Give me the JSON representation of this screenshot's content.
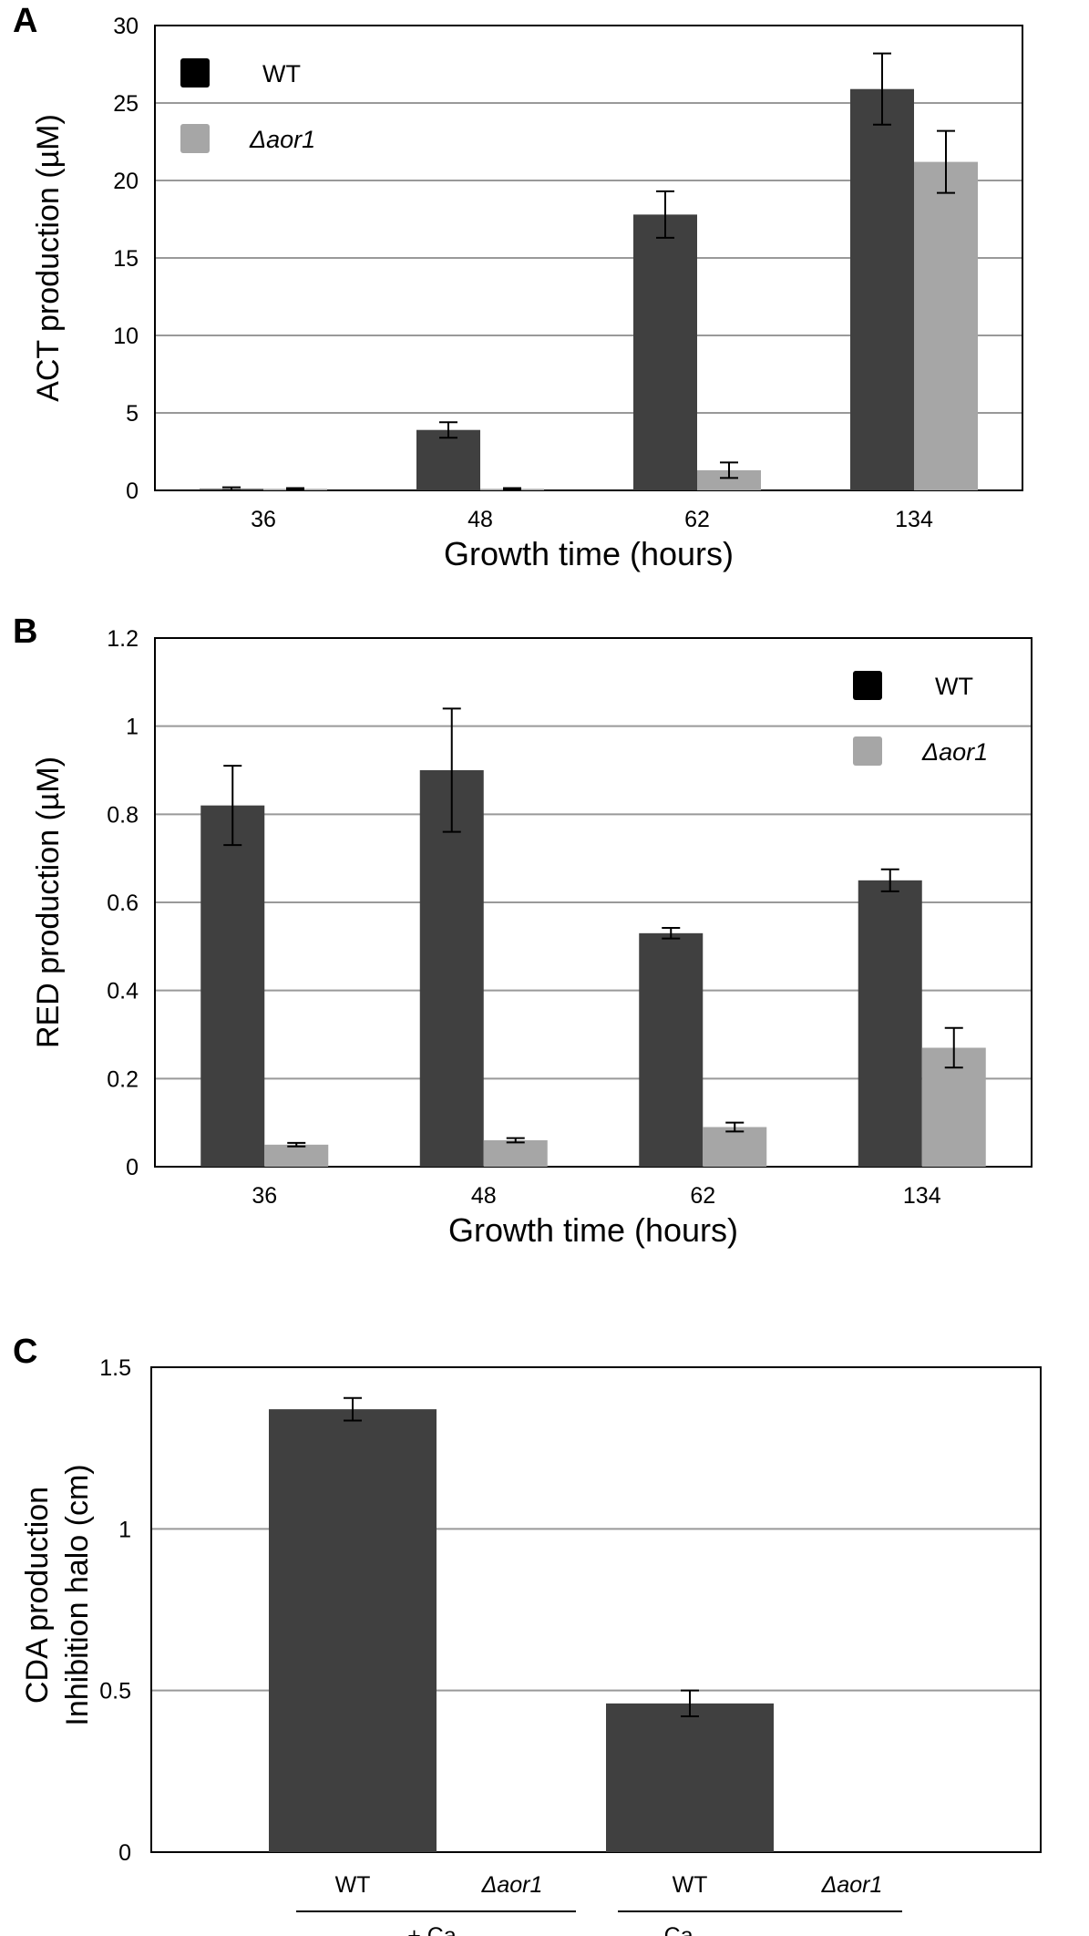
{
  "panels": [
    "A",
    "B",
    "C"
  ],
  "colors": {
    "wt": "#404040",
    "mutant": "#a6a6a6",
    "grid": "#999999",
    "frame": "#000000"
  },
  "chart_data": [
    {
      "type": "bar",
      "id": "A",
      "ylabel": "ACT production  (µM)",
      "xlabel": "Growth time (hours)",
      "categories": [
        "36",
        "48",
        "62",
        "134"
      ],
      "ylim": [
        0,
        30
      ],
      "yticks": [
        0,
        5,
        10,
        15,
        20,
        25,
        30
      ],
      "yticklabels": [
        "0",
        "5",
        "10",
        "15",
        "20",
        "25",
        "30"
      ],
      "legend": [
        "WT",
        "Δaor1"
      ],
      "legend_position": "top-left",
      "series": [
        {
          "name": "WT",
          "values": [
            0.1,
            3.9,
            17.8,
            25.9
          ],
          "errors": [
            0.1,
            0.5,
            1.5,
            2.3
          ]
        },
        {
          "name": "Δaor1",
          "values": [
            0.1,
            0.1,
            1.3,
            21.2
          ],
          "errors": [
            0.05,
            0.05,
            0.5,
            2.0
          ]
        }
      ]
    },
    {
      "type": "bar",
      "id": "B",
      "ylabel": "RED production  (µM)",
      "xlabel": "Growth time (hours)",
      "categories": [
        "36",
        "48",
        "62",
        "134"
      ],
      "ylim": [
        0,
        1.2
      ],
      "yticks": [
        0,
        0.2,
        0.4,
        0.6,
        0.8,
        1.0,
        1.2
      ],
      "yticklabels": [
        "0",
        "0.2",
        "0.4",
        "0.6",
        "0.8",
        "1",
        "1.2"
      ],
      "legend": [
        "WT",
        "Δaor1"
      ],
      "legend_position": "top-right",
      "series": [
        {
          "name": "WT",
          "values": [
            0.82,
            0.9,
            0.53,
            0.65
          ],
          "errors": [
            0.09,
            0.14,
            0.012,
            0.025
          ]
        },
        {
          "name": "Δaor1",
          "values": [
            0.05,
            0.06,
            0.09,
            0.27
          ],
          "errors": [
            0.004,
            0.005,
            0.01,
            0.045
          ]
        }
      ]
    },
    {
      "type": "bar",
      "id": "C",
      "ylabel_lines": [
        "CDA production",
        "Inhibition halo (cm)"
      ],
      "ylim": [
        0,
        1.5
      ],
      "yticks": [
        0,
        0.5,
        1.0,
        1.5
      ],
      "yticklabels": [
        "0",
        "0.5",
        "1",
        "1.5"
      ],
      "categories": [
        "WT",
        "Δaor1",
        "WT",
        "Δaor1"
      ],
      "groups": [
        "+ Ca",
        "- Ca"
      ],
      "values": [
        1.37,
        0,
        0.46,
        0
      ],
      "errors": [
        0.035,
        0,
        0.04,
        0
      ]
    }
  ]
}
